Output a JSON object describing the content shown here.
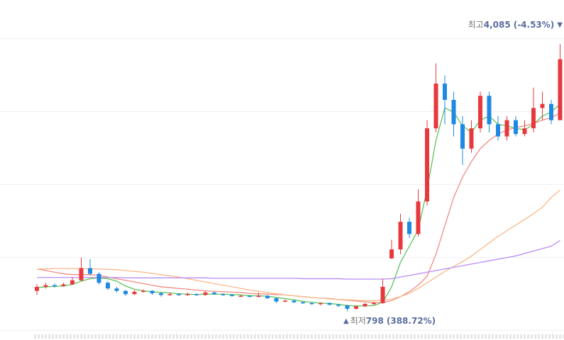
{
  "chart_data": {
    "type": "candlestick",
    "ylim": [
      620,
      4280
    ],
    "up_color": "#e8383d",
    "down_color": "#1e88e5",
    "open": [
      1050,
      1100,
      1120,
      1110,
      1130,
      1180,
      1330,
      1260,
      1150,
      1080,
      1050,
      1010,
      1040,
      1050,
      1020,
      1000,
      1010,
      1000,
      1010,
      1000,
      1030,
      1010,
      1000,
      990,
      990,
      980,
      990,
      960,
      920,
      930,
      910,
      900,
      890,
      900,
      880,
      870,
      830,
      860,
      890,
      900,
      1450,
      1560,
      1900,
      1750,
      2150,
      3050,
      3600,
      3400,
      3100,
      2800,
      3050,
      3450,
      3100,
      2950,
      3150,
      2980,
      3050,
      3300,
      3350,
      3150
    ],
    "high": [
      1130,
      1150,
      1140,
      1150,
      1220,
      1460,
      1440,
      1280,
      1170,
      1100,
      1060,
      1060,
      1070,
      1060,
      1040,
      1030,
      1020,
      1030,
      1020,
      1050,
      1040,
      1020,
      1010,
      1000,
      1000,
      1030,
      1000,
      970,
      940,
      940,
      920,
      910,
      910,
      910,
      890,
      880,
      870,
      900,
      920,
      1200,
      1680,
      2000,
      1950,
      2300,
      3150,
      3850,
      3700,
      3500,
      3200,
      3150,
      3500,
      3500,
      3200,
      3200,
      3200,
      3150,
      3550,
      3500,
      3400,
      4085
    ],
    "low": [
      1000,
      1080,
      1090,
      1100,
      1120,
      1170,
      1240,
      1130,
      1060,
      1030,
      990,
      1000,
      1030,
      1000,
      980,
      990,
      990,
      990,
      990,
      990,
      1000,
      990,
      980,
      980,
      970,
      970,
      950,
      900,
      910,
      900,
      890,
      880,
      870,
      870,
      850,
      798,
      820,
      850,
      880,
      890,
      1440,
      1500,
      1700,
      1720,
      2100,
      3000,
      3100,
      2950,
      2600,
      2750,
      3000,
      3000,
      2900,
      2900,
      2950,
      2950,
      3000,
      3150,
      3100,
      3150
    ],
    "close": [
      1100,
      1120,
      1110,
      1130,
      1180,
      1330,
      1260,
      1150,
      1080,
      1050,
      1010,
      1040,
      1050,
      1020,
      1000,
      1010,
      1000,
      1010,
      1000,
      1030,
      1010,
      1000,
      990,
      990,
      980,
      990,
      960,
      920,
      930,
      910,
      900,
      890,
      900,
      880,
      870,
      830,
      860,
      890,
      900,
      1100,
      1560,
      1900,
      1750,
      2150,
      3050,
      3600,
      3400,
      3100,
      2800,
      3050,
      3450,
      3100,
      2950,
      3150,
      2980,
      3050,
      3300,
      3350,
      3150,
      3900
    ],
    "series": [
      {
        "color": "#5cc55c",
        "values": [
          1090,
          1100,
          1105,
          1110,
          1130,
          1170,
          1200,
          1210,
          1200,
          1170,
          1110,
          1070,
          1050,
          1040,
          1030,
          1025,
          1015,
          1010,
          1005,
          1010,
          1010,
          1010,
          1005,
          1000,
          990,
          990,
          985,
          970,
          955,
          940,
          920,
          910,
          900,
          895,
          885,
          870,
          865,
          865,
          870,
          910,
          1100,
          1400,
          1600,
          1800,
          2300,
          2900,
          3300,
          3250,
          3080,
          3000,
          3150,
          3200,
          3100,
          3080,
          3050,
          3030,
          3100,
          3200,
          3250,
          3350
        ]
      },
      {
        "color": "#f28b82",
        "values": [
          1320,
          1300,
          1280,
          1260,
          1250,
          1250,
          1250,
          1240,
          1220,
          1200,
          1180,
          1160,
          1140,
          1120,
          1100,
          1090,
          1080,
          1070,
          1060,
          1050,
          1045,
          1040,
          1035,
          1030,
          1020,
          1015,
          1010,
          1005,
          1000,
          990,
          980,
          970,
          960,
          955,
          945,
          935,
          925,
          915,
          905,
          905,
          930,
          980,
          1040,
          1120,
          1230,
          1500,
          1850,
          2200,
          2450,
          2640,
          2800,
          2900,
          2980,
          3030,
          3060,
          3080,
          3110,
          3150,
          3180,
          3240
        ]
      },
      {
        "color": "#f7b98a",
        "values": [
          1320,
          1320,
          1325,
          1325,
          1325,
          1325,
          1320,
          1320,
          1315,
          1310,
          1300,
          1290,
          1280,
          1265,
          1250,
          1235,
          1220,
          1200,
          1180,
          1160,
          1140,
          1120,
          1100,
          1080,
          1060,
          1045,
          1030,
          1015,
          1000,
          990,
          980,
          970,
          960,
          950,
          945,
          940,
          935,
          930,
          930,
          935,
          950,
          980,
          1020,
          1080,
          1150,
          1220,
          1290,
          1350,
          1410,
          1480,
          1560,
          1640,
          1720,
          1790,
          1860,
          1930,
          2000,
          2080,
          2200,
          2290
        ]
      },
      {
        "color": "#b98cf5",
        "values": [
          1215,
          1215,
          1215,
          1215,
          1215,
          1215,
          1215,
          1215,
          1215,
          1215,
          1210,
          1210,
          1210,
          1210,
          1210,
          1210,
          1210,
          1210,
          1210,
          1210,
          1205,
          1205,
          1205,
          1205,
          1205,
          1205,
          1205,
          1205,
          1205,
          1205,
          1200,
          1200,
          1200,
          1200,
          1200,
          1195,
          1195,
          1195,
          1195,
          1195,
          1200,
          1220,
          1240,
          1260,
          1280,
          1300,
          1320,
          1340,
          1360,
          1380,
          1400,
          1420,
          1440,
          1460,
          1480,
          1510,
          1540,
          1570,
          1600,
          1670
        ]
      }
    ],
    "annotations": [
      {
        "label": "최고",
        "value": 4085,
        "value_label": "4,085",
        "change": "(-4.53%)",
        "arrow": "▼"
      },
      {
        "label": "최저",
        "value": 798,
        "value_label": "798",
        "change": "(388.72%)",
        "arrow": "▲"
      }
    ]
  }
}
